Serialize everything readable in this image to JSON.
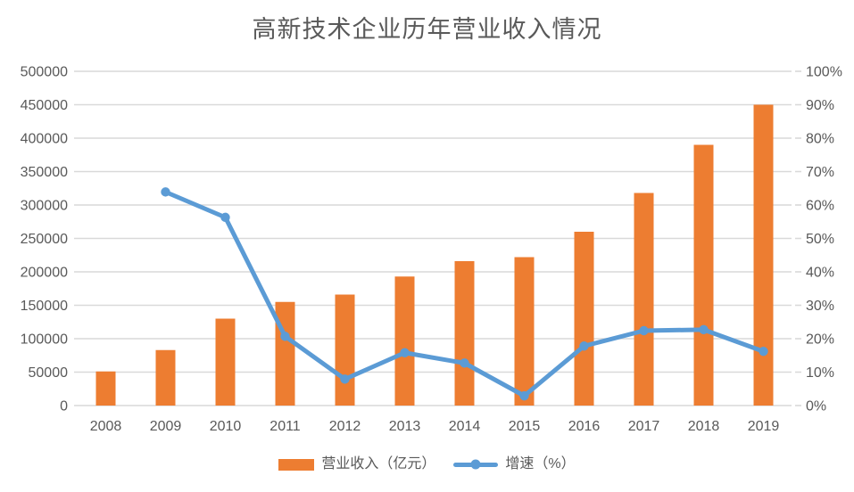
{
  "chart_data": {
    "type": "combo-bar-line",
    "title": "高新技术企业历年营业收入情况",
    "categories": [
      "2008",
      "2009",
      "2010",
      "2011",
      "2012",
      "2013",
      "2014",
      "2015",
      "2016",
      "2017",
      "2018",
      "2019"
    ],
    "series": [
      {
        "name": "营业收入（亿元）",
        "type": "bar",
        "axis": "left",
        "color": "#ED7D31",
        "values": [
          51000,
          83000,
          130000,
          155000,
          166000,
          193000,
          216000,
          222000,
          260000,
          318000,
          390000,
          450000
        ]
      },
      {
        "name": "增速（%）",
        "type": "line",
        "axis": "right",
        "color": "#5B9BD5",
        "values": [
          null,
          63.9,
          56.3,
          20.7,
          7.9,
          15.8,
          12.7,
          2.9,
          17.8,
          22.4,
          22.7,
          16.2
        ]
      }
    ],
    "left_axis": {
      "min": 0,
      "max": 500000,
      "step": 50000,
      "labels": [
        "0",
        "50000",
        "100000",
        "150000",
        "200000",
        "250000",
        "300000",
        "350000",
        "400000",
        "450000",
        "500000"
      ]
    },
    "right_axis": {
      "min": 0,
      "max": 100,
      "step": 10,
      "labels": [
        "0%",
        "10%",
        "20%",
        "30%",
        "40%",
        "50%",
        "60%",
        "70%",
        "80%",
        "90%",
        "100%"
      ]
    },
    "style": {
      "gridline_color": "#D9D9D9",
      "label_color": "#595959",
      "title_color": "#595959",
      "background": "#FFFFFF"
    },
    "legend_position": "bottom",
    "grid": "horizontal"
  }
}
